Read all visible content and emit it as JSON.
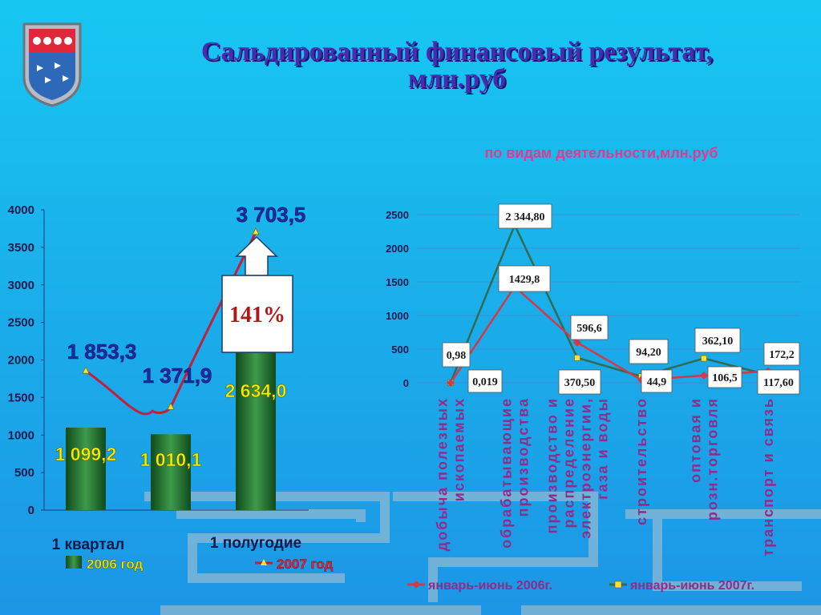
{
  "title": "Сальдированный финансовый результат,\nмлн.руб",
  "icons": {
    "crest": "city-coat-of-arms-icon",
    "arrow": "up-arrow-icon"
  },
  "colors": {
    "bar_2006": "#1e6b2a",
    "line_2007": "#c0203a",
    "line_2006_right": "#d23a4a",
    "line_2007_right": "#2f6b55",
    "title": "#4a2bb0"
  },
  "chart_data": [
    {
      "type": "bar",
      "ylim": [
        0,
        4000
      ],
      "yticks": [
        "0",
        "500",
        "1000",
        "1500",
        "2000",
        "2500",
        "3000",
        "3500",
        "4000"
      ],
      "categories": [
        "1 квартал",
        "",
        "1 полугодие"
      ],
      "series": [
        {
          "name": "2006 год",
          "type": "bar",
          "values": [
            1099.2,
            1010.1,
            2634.0
          ],
          "labels": [
            "1 099,2",
            "1 010,1",
            "2 634,0"
          ]
        },
        {
          "name": "2007 год",
          "type": "line",
          "values": [
            1853.3,
            1371.9,
            3703.5
          ],
          "labels": [
            "1 853,3",
            "1 371,9",
            "3 703,5"
          ]
        }
      ],
      "growth_label": "141%"
    },
    {
      "type": "line",
      "title": "по видам деятельности,млн.руб",
      "ylim": [
        0,
        2500
      ],
      "yticks": [
        "0",
        "500",
        "1000",
        "1500",
        "2000",
        "2500"
      ],
      "categories": [
        [
          "добыча полезных",
          "ископаемых"
        ],
        [
          "обрабатывающие",
          "производства"
        ],
        [
          "производство и",
          "распределение",
          "электроэнергии,",
          "газа и воды"
        ],
        [
          "строительство"
        ],
        [
          "оптовая и",
          "розн.торговля"
        ],
        [
          "транспорт и связь"
        ]
      ],
      "series": [
        {
          "name": "январь-июнь 2006г.",
          "values": [
            0.019,
            1429.8,
            596.6,
            44.9,
            106.5,
            172.2
          ],
          "labels": [
            "0,019",
            "1429,8",
            "596,6",
            "44,9",
            "106,5",
            "172,2"
          ]
        },
        {
          "name": "январь-июнь 2007г.",
          "values": [
            0.98,
            2344.8,
            370.5,
            94.2,
            362.1,
            117.6
          ],
          "labels": [
            "0,98",
            "2 344,80",
            "370,50",
            "94,20",
            "362,10",
            "117,60"
          ]
        }
      ]
    }
  ]
}
